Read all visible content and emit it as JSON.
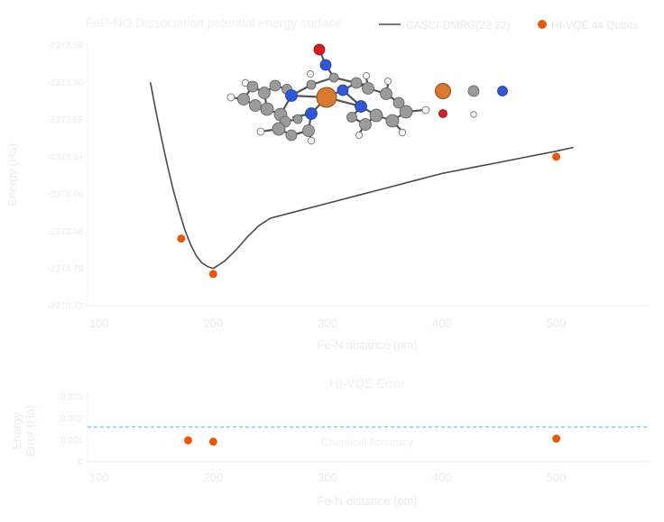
{
  "chart_data": [
    {
      "type": "line",
      "title": "FeP-NO Dissociation potential energy surface",
      "xlabel": "Fe-N distance (pm)",
      "ylabel": "Energy (Ha)",
      "xlim": [
        90,
        580
      ],
      "ylim": [
        -2373.72,
        -2373.58
      ],
      "x_ticks": [
        100,
        200,
        300,
        400,
        500
      ],
      "x_tick_labels": [
        "100",
        "200",
        "300",
        "400",
        "500"
      ],
      "y_ticks": [
        -2373.58,
        -2373.6,
        -2373.62,
        -2373.64,
        -2373.66,
        -2373.68,
        -2373.7,
        -2373.72
      ],
      "y_tick_labels": [
        "-2373.58",
        "-2373.60",
        "-2373.62",
        "-2373.64",
        "-2373.66",
        "-2373.68",
        "-2373.70",
        "-2373.72"
      ],
      "grid": false,
      "legend_position": "top-right",
      "series": [
        {
          "name": "CASCI-DMRG(22,22)",
          "kind": "line",
          "color": "#4a4a4a",
          "x": [
            145,
            150,
            155,
            160,
            165,
            170,
            175,
            180,
            185,
            190,
            195,
            200,
            210,
            220,
            230,
            240,
            250,
            275,
            300,
            325,
            350,
            375,
            400,
            425,
            450,
            475,
            500,
            515
          ],
          "y": [
            -2373.6,
            -2373.616,
            -2373.631,
            -2373.645,
            -2373.658,
            -2373.669,
            -2373.679,
            -2373.687,
            -2373.693,
            -2373.697,
            -2373.699,
            -2373.7,
            -2373.696,
            -2373.69,
            -2373.683,
            -2373.677,
            -2373.673,
            -2373.669,
            -2373.665,
            -2373.661,
            -2373.657,
            -2373.653,
            -2373.649,
            -2373.646,
            -2373.643,
            -2373.64,
            -2373.637,
            -2373.635
          ]
        },
        {
          "name": "HI-VQE 44 Qubits",
          "kind": "scatter",
          "color": "#e8580c",
          "x": [
            172,
            200,
            500
          ],
          "y": [
            -2373.684,
            -2373.703,
            -2373.64
          ]
        }
      ],
      "inset_image": {
        "description": "ball-and-stick molecular model of iron porphyrin with nitrosyl",
        "atom_legend_colors": [
          "#d97830",
          "#9a9a9a",
          "#2f57d6",
          "#d21f1f",
          "#f4f4f4"
        ]
      }
    },
    {
      "type": "scatter",
      "title": "HI-VQE Error",
      "xlabel": "Fe-N distance (pm)",
      "ylabel_lines": [
        "Energy",
        "Error (Ha)"
      ],
      "xlim": [
        90,
        580
      ],
      "ylim": [
        0,
        0.003
      ],
      "x_ticks": [
        100,
        200,
        300,
        400,
        500
      ],
      "x_tick_labels": [
        "100",
        "200",
        "300",
        "400",
        "500"
      ],
      "y_ticks": [
        0,
        0.001,
        0.002,
        0.003
      ],
      "y_tick_labels": [
        "0",
        "0.001",
        "0.002",
        "0.003"
      ],
      "grid": false,
      "reference_line": {
        "y": 0.0016,
        "label": "Chemical Accuracy",
        "color": "#7fc1e6",
        "style": "dashed"
      },
      "series": [
        {
          "name": "HI-VQE 44 Qubits",
          "color": "#e8580c",
          "x": [
            178,
            200,
            500
          ],
          "y": [
            0.00098,
            0.00092,
            0.00106
          ]
        }
      ]
    }
  ]
}
